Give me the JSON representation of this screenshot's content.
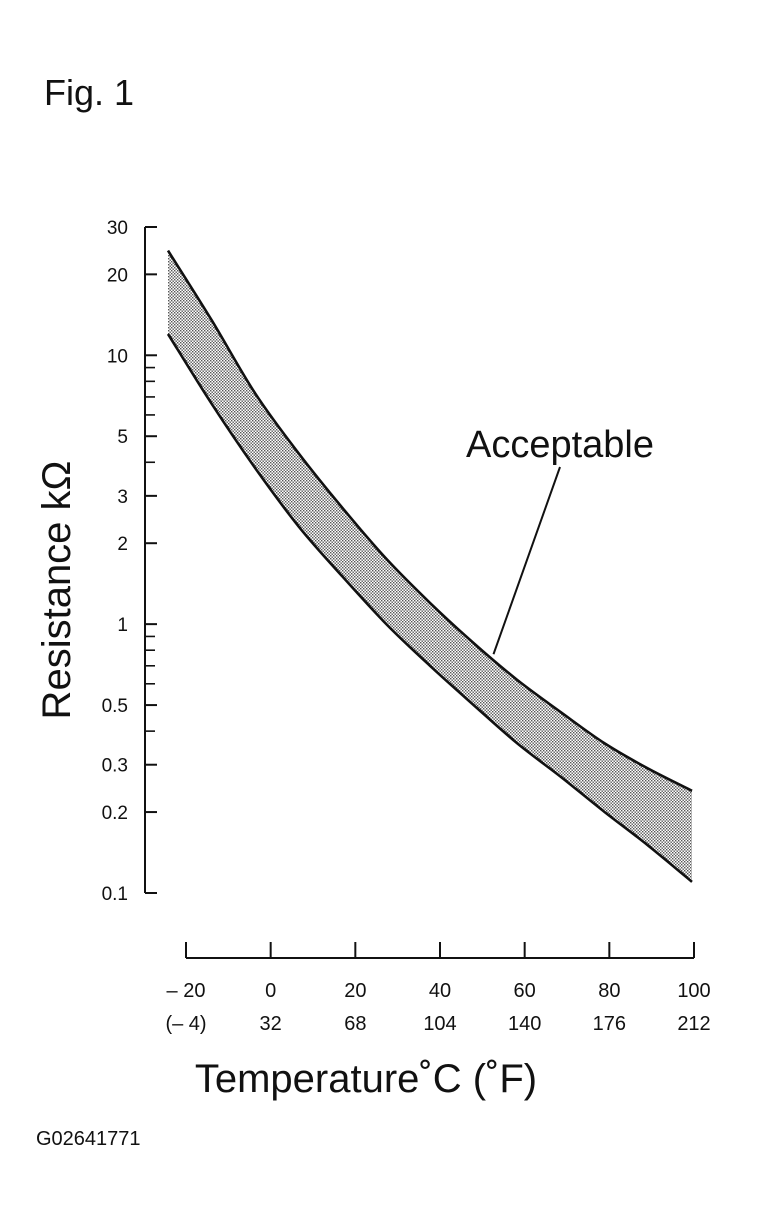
{
  "figure_label": "Fig. 1",
  "code_label": "G02641771",
  "chart_data": {
    "type": "area",
    "title": "",
    "xlabel": "Temperature˚C (˚F)",
    "ylabel": "Resistance kΩ",
    "y_scale": "log",
    "ylim": [
      0.1,
      30
    ],
    "xlim": [
      -20,
      100
    ],
    "y_ticks": [
      {
        "value": 30,
        "label": "30"
      },
      {
        "value": 20,
        "label": "20"
      },
      {
        "value": 10,
        "label": "10"
      },
      {
        "value": 5,
        "label": "5"
      },
      {
        "value": 3,
        "label": "3"
      },
      {
        "value": 2,
        "label": "2"
      },
      {
        "value": 1,
        "label": "1"
      },
      {
        "value": 0.5,
        "label": "0.5"
      },
      {
        "value": 0.3,
        "label": "0.3"
      },
      {
        "value": 0.2,
        "label": "0.2"
      },
      {
        "value": 0.1,
        "label": "0.1"
      }
    ],
    "y_minor_ticks": [
      9,
      8,
      7,
      6,
      4,
      0.9,
      0.8,
      0.7,
      0.6,
      0.4
    ],
    "x_ticks": [
      {
        "value": -20,
        "label": "– 20",
        "label_f": "(– 4)"
      },
      {
        "value": 0,
        "label": "0",
        "label_f": "32"
      },
      {
        "value": 20,
        "label": "20",
        "label_f": "68"
      },
      {
        "value": 40,
        "label": "40",
        "label_f": "104"
      },
      {
        "value": 60,
        "label": "60",
        "label_f": "140"
      },
      {
        "value": 80,
        "label": "80",
        "label_f": "176"
      },
      {
        "value": 100,
        "label": "100",
        "label_f": "212"
      }
    ],
    "series": [
      {
        "role": "upper",
        "points": [
          [
            -20,
            24.5
          ],
          [
            -10,
            13.5
          ],
          [
            0,
            7.2
          ],
          [
            10,
            4.3
          ],
          [
            20,
            2.7
          ],
          [
            30,
            1.75
          ],
          [
            40,
            1.2
          ],
          [
            50,
            0.85
          ],
          [
            60,
            0.62
          ],
          [
            70,
            0.47
          ],
          [
            80,
            0.36
          ],
          [
            90,
            0.29
          ],
          [
            100,
            0.24
          ]
        ]
      },
      {
        "role": "lower",
        "points": [
          [
            -20,
            12
          ],
          [
            -10,
            6.6
          ],
          [
            0,
            3.8
          ],
          [
            10,
            2.3
          ],
          [
            20,
            1.5
          ],
          [
            30,
            1.0
          ],
          [
            40,
            0.7
          ],
          [
            50,
            0.5
          ],
          [
            60,
            0.36
          ],
          [
            70,
            0.27
          ],
          [
            80,
            0.2
          ],
          [
            90,
            0.15
          ],
          [
            100,
            0.11
          ]
        ]
      }
    ],
    "band_fill": "#b3b3b3",
    "annotation": {
      "text": "Acceptable",
      "x": 55,
      "y": 0.8
    },
    "grid": false,
    "legend": "none"
  }
}
